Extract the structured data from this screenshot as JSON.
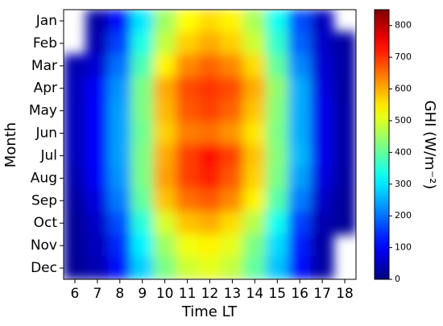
{
  "chart_data": {
    "type": "heatmap",
    "xlabel": "Time LT",
    "ylabel": "Month",
    "colorbar_label": "GHI (W/m⁻²)",
    "x": [
      6,
      7,
      8,
      9,
      10,
      11,
      12,
      13,
      14,
      15,
      16,
      17,
      18
    ],
    "xticks": [
      6,
      7,
      8,
      9,
      10,
      11,
      12,
      13,
      14,
      15,
      16,
      17,
      18
    ],
    "categories": [
      "Jan",
      "Feb",
      "Mar",
      "Apr",
      "May",
      "Jun",
      "Jul",
      "Aug",
      "Sep",
      "Oct",
      "Nov",
      "Dec"
    ],
    "values": [
      [
        null,
        30,
        120,
        300,
        450,
        530,
        560,
        540,
        460,
        330,
        170,
        50,
        null
      ],
      [
        null,
        40,
        160,
        340,
        480,
        570,
        600,
        570,
        490,
        360,
        190,
        60,
        30
      ],
      [
        40,
        70,
        200,
        380,
        540,
        630,
        660,
        630,
        560,
        400,
        220,
        70,
        30
      ],
      [
        50,
        100,
        230,
        420,
        600,
        680,
        700,
        680,
        600,
        440,
        250,
        80,
        30
      ],
      [
        50,
        110,
        240,
        420,
        590,
        670,
        690,
        660,
        580,
        430,
        250,
        90,
        30
      ],
      [
        50,
        110,
        240,
        410,
        570,
        640,
        650,
        620,
        550,
        420,
        250,
        90,
        30
      ],
      [
        50,
        110,
        240,
        420,
        600,
        690,
        730,
        690,
        580,
        430,
        260,
        90,
        30
      ],
      [
        40,
        100,
        230,
        420,
        610,
        690,
        720,
        670,
        570,
        420,
        240,
        80,
        30
      ],
      [
        30,
        80,
        210,
        400,
        580,
        650,
        670,
        630,
        540,
        390,
        210,
        60,
        20
      ],
      [
        20,
        60,
        170,
        350,
        500,
        580,
        600,
        560,
        470,
        330,
        160,
        40,
        20
      ],
      [
        20,
        50,
        140,
        310,
        450,
        520,
        540,
        510,
        420,
        290,
        130,
        30,
        null
      ],
      [
        20,
        40,
        120,
        280,
        420,
        490,
        510,
        480,
        400,
        270,
        120,
        30,
        null
      ]
    ],
    "colormap": "jet",
    "clim": [
      0,
      850
    ],
    "cticks": [
      0,
      100,
      200,
      300,
      400,
      500,
      600,
      700,
      800
    ]
  }
}
